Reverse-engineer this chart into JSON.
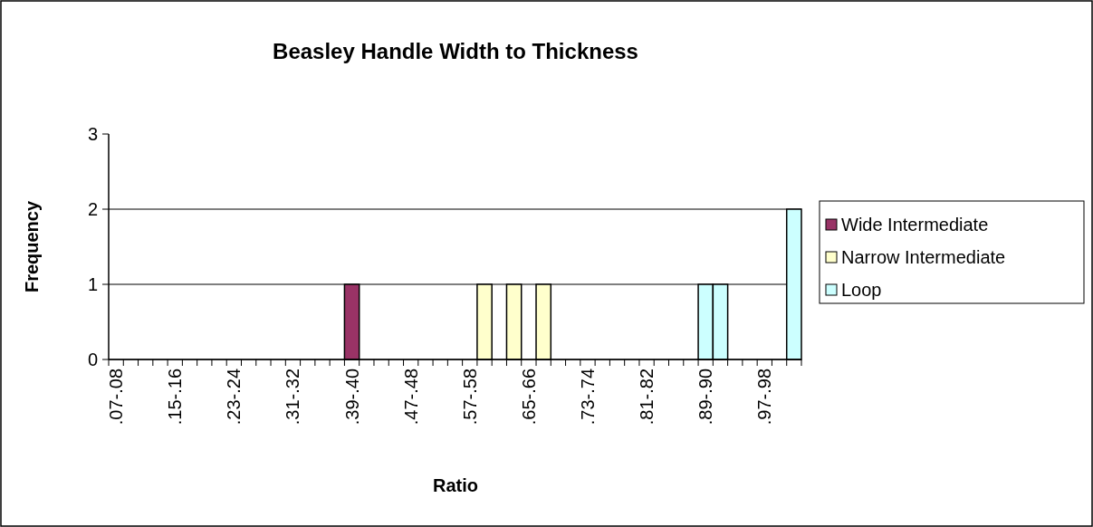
{
  "chart_data": {
    "type": "bar",
    "title": "Beasley Handle Width to Thickness",
    "xlabel": "Ratio",
    "ylabel": "Frequency",
    "categories": [
      ".07-.08",
      null,
      null,
      null,
      ".15-.16",
      null,
      null,
      null,
      ".23-.24",
      null,
      null,
      null,
      ".31-.32",
      null,
      null,
      null,
      ".39-.40",
      null,
      null,
      null,
      ".47-.48",
      null,
      null,
      null,
      ".57-.58",
      null,
      null,
      null,
      ".65-.66",
      null,
      null,
      null,
      ".73-.74",
      null,
      null,
      null,
      ".81-.82",
      null,
      null,
      null,
      ".89-.90",
      null,
      null,
      null,
      ".97-.98",
      null,
      null
    ],
    "series": [
      {
        "name": "Wide Intermediate",
        "color": "#993366",
        "values": [
          null,
          null,
          null,
          null,
          null,
          null,
          null,
          null,
          null,
          null,
          null,
          null,
          null,
          null,
          null,
          null,
          1,
          null,
          null,
          null,
          null,
          null,
          null,
          null,
          null,
          null,
          null,
          null,
          null,
          null,
          null,
          null,
          null,
          null,
          null,
          null,
          null,
          null,
          null,
          null,
          null,
          null,
          null,
          null,
          null,
          null,
          null
        ]
      },
      {
        "name": "Narrow Intermediate",
        "color": "#ffffcc",
        "values": [
          null,
          null,
          null,
          null,
          null,
          null,
          null,
          null,
          null,
          null,
          null,
          null,
          null,
          null,
          null,
          null,
          null,
          null,
          null,
          null,
          null,
          null,
          null,
          null,
          null,
          1,
          null,
          1,
          null,
          1,
          null,
          null,
          null,
          null,
          null,
          null,
          null,
          null,
          null,
          null,
          null,
          null,
          null,
          null,
          null,
          null,
          null
        ]
      },
      {
        "name": "Loop",
        "color": "#ccffff",
        "values": [
          null,
          null,
          null,
          null,
          null,
          null,
          null,
          null,
          null,
          null,
          null,
          null,
          null,
          null,
          null,
          null,
          null,
          null,
          null,
          null,
          null,
          null,
          null,
          null,
          null,
          null,
          null,
          null,
          null,
          null,
          null,
          null,
          null,
          null,
          null,
          null,
          null,
          null,
          null,
          null,
          1,
          1,
          null,
          null,
          null,
          null,
          2
        ]
      }
    ],
    "ylim": [
      0,
      3
    ],
    "yticks": [
      0,
      1,
      2,
      3
    ],
    "grid": "y",
    "legend": "right"
  }
}
